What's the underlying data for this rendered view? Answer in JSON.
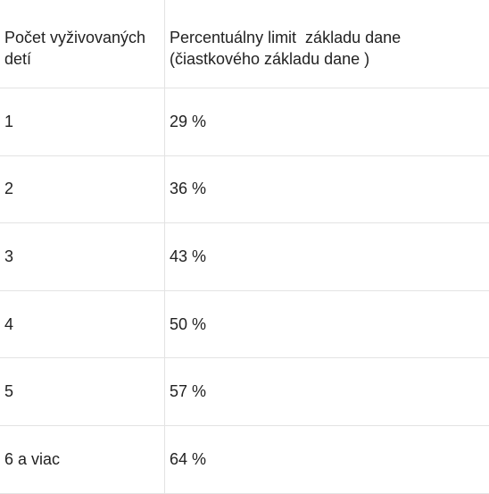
{
  "table": {
    "header": [
      [
        "Počet vyživovaných",
        "detí"
      ],
      [
        "Percentuálny limit  základu dane",
        "(čiastkového základu dane )"
      ]
    ],
    "rows": [
      [
        "1",
        "29 %"
      ],
      [
        "2",
        "36 %"
      ],
      [
        "3",
        "43 %"
      ],
      [
        "4",
        "50 %"
      ],
      [
        "5",
        "57 %"
      ],
      [
        "6 a viac",
        "64 %"
      ]
    ]
  }
}
